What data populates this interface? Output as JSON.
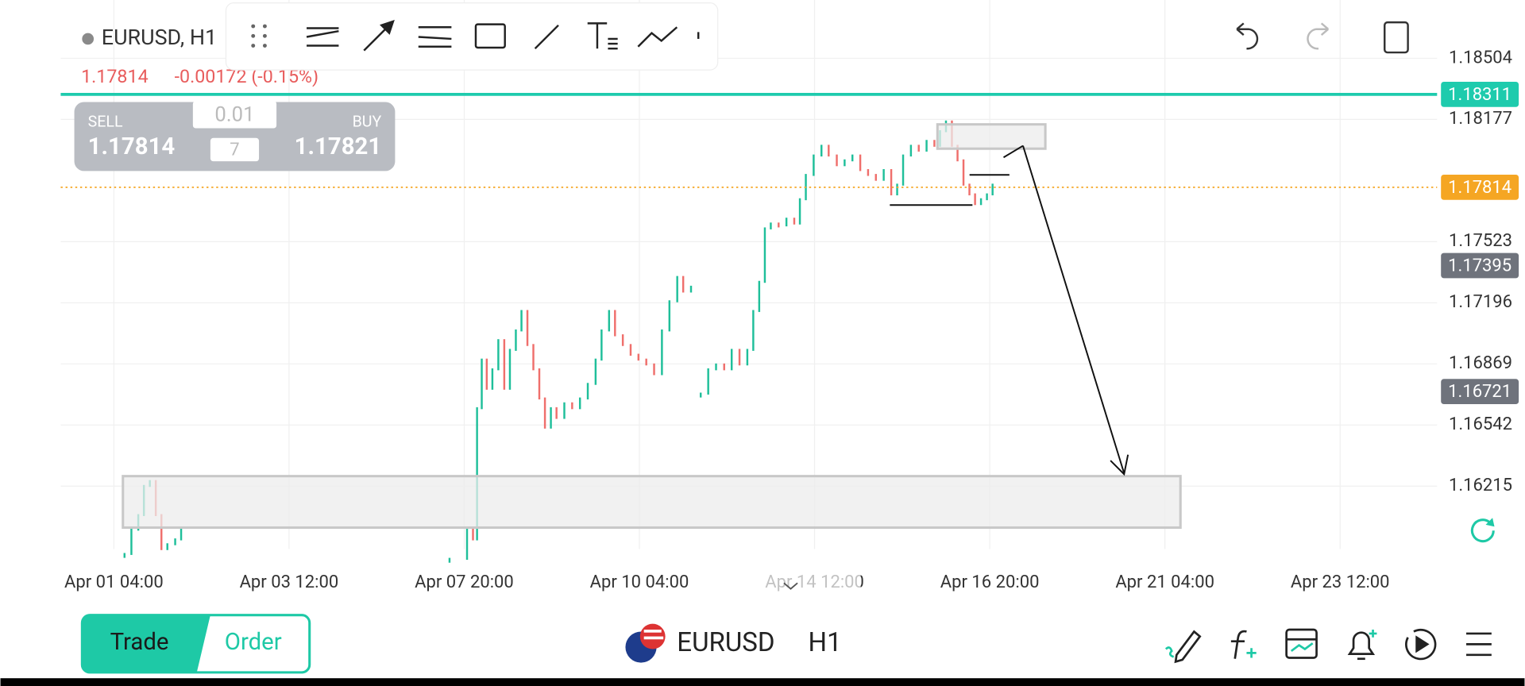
{
  "header": {
    "symbol": "EURUSD, H1",
    "quote": "1.17814",
    "change": "-0.00172 (-0.15%)"
  },
  "trade_panel": {
    "sell_label": "SELL",
    "sell_price": "1.17814",
    "lot": "0.01",
    "count": "7",
    "buy_label": "BUY",
    "buy_price": "1.17821"
  },
  "chart_data": {
    "type": "candlestick",
    "up_color": "#1fbf9a",
    "down_color": "#ef6f6c",
    "x": [
      3.4,
      5.6,
      7.8,
      9.6,
      11.5,
      13.4,
      15.2,
      17.1,
      19.6,
      21.5,
      80,
      107.3,
      112.9,
      114.8,
      116.1,
      117.6,
      119.2,
      121.0,
      122.9,
      124.8,
      126.6,
      128.5,
      130.3,
      132.2,
      134.1,
      136.0,
      137.8,
      139.7,
      141.5,
      144.0,
      146.5,
      149.0,
      151.5,
      154.0,
      155.9,
      158.3,
      160.2,
      162.7,
      165.2,
      167.7,
      170.2,
      172.7,
      175.2,
      177.6,
      180.1,
      182.0,
      184.5,
      186.0,
      187.6,
      190.0,
      192.5,
      195.1,
      197.5,
      200.0,
      202.5,
      204.4,
      206.3,
      208.1,
      210.0,
      212.5,
      215.0,
      217.5,
      219.3,
      221.2,
      223.7,
      226.2,
      228.5,
      231.1,
      233.6,
      236.1,
      238.6,
      241.1,
      243.6,
      246.1,
      248.5,
      250.4,
      252.3,
      254.8,
      257.3,
      259.8,
      262.3,
      264.1,
      266.0,
      267.9,
      269.7,
      271.6,
      273.5,
      275.3,
      277.2,
      279.1,
      280.9
    ],
    "values": [
      1.15852,
      1.15982,
      1.1606,
      1.16216,
      1.16242,
      1.1606,
      1.15878,
      1.15904,
      1.1593,
      1.15982,
      null,
      1.15826,
      1.15982,
      1.1593,
      1.16632,
      1.16892,
      1.16736,
      1.1684,
      1.16996,
      1.16736,
      1.16944,
      1.17048,
      1.17152,
      1.1697,
      1.1684,
      1.16684,
      1.16528,
      1.16632,
      1.1658,
      1.16658,
      1.16632,
      1.16684,
      1.16762,
      1.16892,
      1.17048,
      1.17152,
      1.17022,
      1.1697,
      1.16918,
      1.16892,
      1.16866,
      1.16814,
      1.17048,
      1.17204,
      1.17334,
      1.17256,
      1.17282,
      null,
      1.1671,
      1.1684,
      1.16866,
      1.1684,
      1.16944,
      1.16866,
      1.16944,
      1.17152,
      1.17308,
      1.17594,
      1.1762,
      1.1761,
      1.17646,
      1.1762,
      1.1775,
      1.1788,
      1.17984,
      1.18036,
      1.17984,
      1.17932,
      1.17958,
      1.17984,
      1.17906,
      1.1788,
      1.17854,
      1.17906,
      1.17776,
      1.17828,
      1.17984,
      1.18036,
      1.1801,
      1.18062,
      1.18036,
      1.18114,
      1.18166,
      1.18036,
      1.17958,
      1.17828,
      1.17776,
      1.17724,
      1.1775,
      1.17776,
      1.17828
    ],
    "xlim": [
      -17,
      423
    ],
    "xticks": [
      {
        "value": 0,
        "label": "Apr 01 04:00"
      },
      {
        "value": 56,
        "label": "Apr 03 12:00"
      },
      {
        "value": 112,
        "label": "Apr 07 20:00"
      },
      {
        "value": 168,
        "label": "Apr 10 04:00"
      },
      {
        "value": 224,
        "label": "Apr 14 12:00"
      },
      {
        "value": 280,
        "label": "Apr 16 20:00"
      },
      {
        "value": 336,
        "label": "Apr 21 04:00"
      },
      {
        "value": 392,
        "label": "Apr 23 12:00"
      }
    ],
    "ylim": [
      1.15811,
      1.18816
    ],
    "yticks": [
      1.18504,
      1.18177,
      1.17523,
      1.17196,
      1.16869,
      1.16542,
      1.16215
    ],
    "grid": true,
    "price_markers": [
      {
        "value": 1.18311,
        "color": "#1ecbad",
        "line": "solid"
      },
      {
        "value": 1.17814,
        "color": "#f5a623",
        "line": "dotted"
      },
      {
        "value": 1.17395,
        "color": "#6f737c"
      },
      {
        "value": 1.16721,
        "color": "#6f737c"
      }
    ]
  },
  "bottom_bar": {
    "trade": "Trade",
    "order": "Order",
    "symbol": "EURUSD",
    "timeframe": "H1"
  }
}
